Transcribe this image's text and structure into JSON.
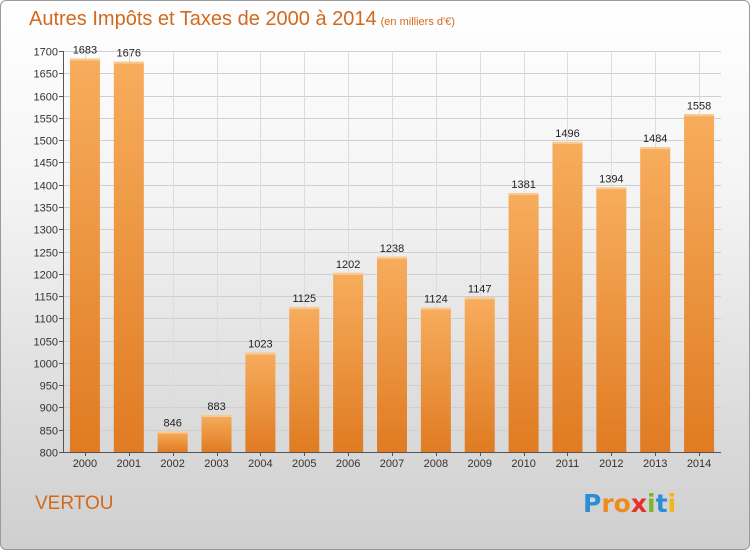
{
  "header": {
    "title": "Autres Impôts et Taxes de 2000 à 2014",
    "subtitle": "(en milliers d'€)"
  },
  "commune": "VERTOU",
  "brand": {
    "letters": [
      "P",
      "r",
      "o",
      "x",
      "i",
      "t",
      "i"
    ],
    "colors": [
      "#2a8fd6",
      "#f08a1c",
      "#f08a1c",
      "#e8302a",
      "#7bb72b",
      "#2a8fd6",
      "#f2b619"
    ]
  },
  "colors": {
    "bar_light": "#f7ad5d",
    "bar_dark": "#e07b22"
  },
  "chart_data": {
    "type": "bar",
    "title": "Autres Impôts et Taxes de 2000 à 2014",
    "subtitle": "(en milliers d'€)",
    "xlabel": "",
    "ylabel": "",
    "categories": [
      "2000",
      "2001",
      "2002",
      "2003",
      "2004",
      "2005",
      "2006",
      "2007",
      "2008",
      "2009",
      "2010",
      "2011",
      "2012",
      "2013",
      "2014"
    ],
    "values": [
      1683,
      1676,
      846,
      883,
      1023,
      1125,
      1202,
      1238,
      1124,
      1147,
      1381,
      1496,
      1394,
      1484,
      1558
    ],
    "ylim": [
      800,
      1700
    ],
    "yticks": [
      800,
      850,
      900,
      950,
      1000,
      1050,
      1100,
      1150,
      1200,
      1250,
      1300,
      1350,
      1400,
      1450,
      1500,
      1550,
      1600,
      1650,
      1700
    ],
    "grid": true,
    "legend": "none"
  }
}
